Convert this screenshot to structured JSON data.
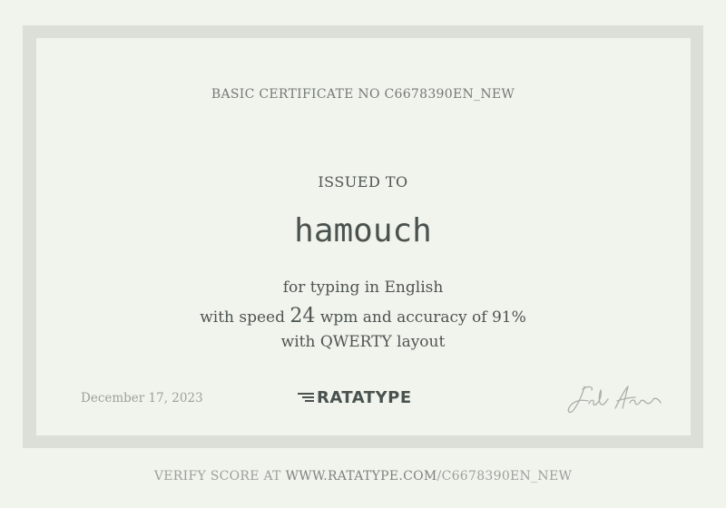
{
  "certificate": {
    "number_line": "BASIC CERTIFICATE NO C6678390EN_NEW",
    "issued_to_label": "ISSUED TO",
    "recipient": "hamouch",
    "language_line": "for typing in English",
    "speed_prefix": "with speed",
    "speed_value": "24",
    "speed_suffix": "wpm and accuracy of 91%",
    "layout_line": "with QWERTY layout",
    "date": "December 17, 2023"
  },
  "logo": {
    "text": "RATATYPE"
  },
  "footer": {
    "verify_prefix": "VERIFY SCORE AT ",
    "verify_url": "WWW.RATATYPE.COM",
    "verify_path": "/C6678390EN_NEW"
  },
  "colors": {
    "background": "#f1f4ec",
    "frame": "#dcdfd8",
    "text_dark": "#4d5553",
    "text_muted": "#9aa19d"
  }
}
